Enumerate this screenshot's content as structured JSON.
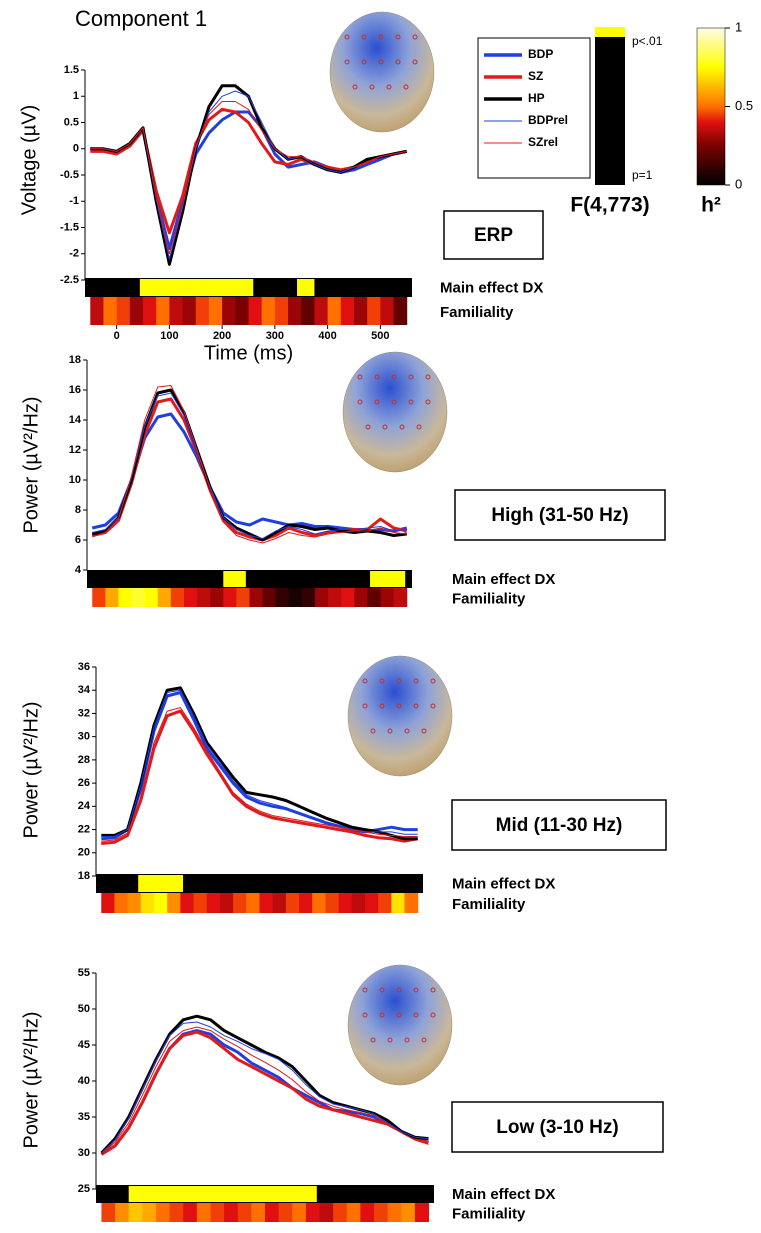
{
  "title": "Component 1",
  "significance_bar": {
    "label": "F(4,773)",
    "top_label": "p<.01",
    "bottom_label": "p=1"
  },
  "h2_bar": {
    "label": "h²",
    "ylim": [
      0,
      1
    ],
    "yticks": [
      0,
      0.5,
      1
    ]
  },
  "chart_data": [
    {
      "type": "line",
      "label": "ERP",
      "ylabel": "Voltage (µV)",
      "xlabel": "Time (ms)",
      "xlim": [
        -60,
        560
      ],
      "xticks": [
        0,
        100,
        200,
        300,
        400,
        500
      ],
      "ylim": [
        -2.5,
        1.5
      ],
      "yticks": [
        -2.5,
        -2.0,
        -1.5,
        -1.0,
        -0.5,
        0.0,
        0.5,
        1.0,
        1.5
      ],
      "x": [
        -50,
        -25,
        0,
        25,
        50,
        75,
        100,
        125,
        150,
        175,
        200,
        225,
        250,
        275,
        300,
        325,
        350,
        375,
        400,
        425,
        450,
        475,
        500,
        525,
        550
      ],
      "series": [
        {
          "name": "BDP",
          "color": "#1f3fe0",
          "style": "thick",
          "values": [
            0,
            -0.02,
            -0.05,
            0.1,
            0.35,
            -0.9,
            -1.9,
            -1.0,
            -0.1,
            0.3,
            0.55,
            0.7,
            0.7,
            0.4,
            -0.1,
            -0.35,
            -0.3,
            -0.25,
            -0.35,
            -0.45,
            -0.4,
            -0.3,
            -0.2,
            -0.1,
            -0.05
          ]
        },
        {
          "name": "SZ",
          "color": "#e01b1b",
          "style": "thick",
          "values": [
            -0.05,
            -0.05,
            -0.1,
            0.05,
            0.35,
            -0.8,
            -1.6,
            -0.9,
            0.1,
            0.55,
            0.75,
            0.7,
            0.5,
            0.1,
            -0.25,
            -0.3,
            -0.2,
            -0.3,
            -0.35,
            -0.4,
            -0.35,
            -0.25,
            -0.15,
            -0.1,
            -0.05
          ]
        },
        {
          "name": "HP",
          "color": "#000000",
          "style": "thick",
          "values": [
            0,
            0,
            -0.05,
            0.1,
            0.4,
            -1.0,
            -2.2,
            -1.2,
            0.0,
            0.8,
            1.2,
            1.2,
            1.0,
            0.4,
            0.0,
            -0.2,
            -0.15,
            -0.3,
            -0.4,
            -0.45,
            -0.35,
            -0.2,
            -0.15,
            -0.1,
            -0.05
          ]
        },
        {
          "name": "BDPrel",
          "color": "#1f3fe0",
          "style": "thin",
          "values": [
            0,
            0,
            -0.05,
            0.1,
            0.4,
            -0.95,
            -2.1,
            -1.1,
            0.0,
            0.7,
            1.0,
            1.1,
            1.0,
            0.5,
            0.0,
            -0.2,
            -0.15,
            -0.3,
            -0.4,
            -0.45,
            -0.35,
            -0.25,
            -0.15,
            -0.1,
            -0.05
          ]
        },
        {
          "name": "SZrel",
          "color": "#e01b1b",
          "style": "thin",
          "values": [
            0,
            0,
            -0.05,
            0.1,
            0.4,
            -0.9,
            -2.0,
            -1.1,
            0.05,
            0.65,
            0.9,
            0.9,
            0.75,
            0.35,
            0.0,
            -0.15,
            -0.15,
            -0.25,
            -0.35,
            -0.4,
            -0.35,
            -0.25,
            -0.15,
            -0.1,
            -0.05
          ]
        }
      ],
      "main_effect_dx": {
        "label": "Main effect DX",
        "intervals": [
          [
            44,
            259
          ],
          [
            342,
            375
          ]
        ]
      },
      "familiality": {
        "label": "Familiality",
        "bins": [
          -50,
          -25,
          0,
          25,
          50,
          75,
          100,
          125,
          150,
          175,
          200,
          225,
          250,
          275,
          300,
          325,
          350,
          375,
          400,
          425,
          450,
          475,
          500,
          525,
          550
        ],
        "values": [
          0.35,
          0.5,
          0.45,
          0.3,
          0.4,
          0.5,
          0.35,
          0.3,
          0.45,
          0.5,
          0.3,
          0.25,
          0.4,
          0.5,
          0.45,
          0.3,
          0.2,
          0.35,
          0.5,
          0.4,
          0.3,
          0.45,
          0.35,
          0.2
        ]
      }
    },
    {
      "type": "line",
      "label": "High (31-50 Hz)",
      "ylabel": "Power (µV²/Hz)",
      "xlim": [
        -60,
        560
      ],
      "ylim": [
        4,
        18
      ],
      "yticks": [
        4,
        6,
        8,
        10,
        12,
        14,
        16,
        18
      ],
      "x": [
        -50,
        -25,
        0,
        25,
        50,
        75,
        100,
        125,
        150,
        175,
        200,
        225,
        250,
        275,
        300,
        325,
        350,
        375,
        400,
        425,
        450,
        475,
        500,
        525,
        550
      ],
      "series": [
        {
          "name": "BDP",
          "color": "#1f3fe0",
          "style": "thick",
          "values": [
            6.8,
            7.0,
            7.8,
            10,
            12.8,
            14.2,
            14.4,
            13.2,
            11.5,
            9.5,
            7.8,
            7.2,
            7.0,
            7.4,
            7.2,
            7.0,
            7.1,
            6.9,
            6.9,
            6.8,
            6.7,
            6.6,
            6.7,
            6.6,
            6.8
          ]
        },
        {
          "name": "SZ",
          "color": "#e01b1b",
          "style": "thick",
          "values": [
            6.3,
            6.5,
            7.3,
            9.8,
            13,
            15.2,
            15.4,
            14,
            11.8,
            9.3,
            7.3,
            6.5,
            6.2,
            6.0,
            6.3,
            6.8,
            6.5,
            6.3,
            6.5,
            6.6,
            6.7,
            6.7,
            7.4,
            6.8,
            6.6
          ]
        },
        {
          "name": "HP",
          "color": "#000000",
          "style": "thick",
          "values": [
            6.4,
            6.6,
            7.5,
            10,
            13.5,
            15.8,
            16.0,
            14.5,
            12,
            9.5,
            7.5,
            6.8,
            6.4,
            6.0,
            6.5,
            7.0,
            6.9,
            6.7,
            6.8,
            6.6,
            6.5,
            6.6,
            6.5,
            6.3,
            6.4
          ]
        },
        {
          "name": "BDPrel",
          "color": "#1f3fe0",
          "style": "thin",
          "values": [
            6.5,
            6.7,
            7.5,
            10.2,
            13.6,
            15.6,
            15.8,
            14.3,
            11.8,
            9.5,
            7.5,
            6.7,
            6.3,
            6.1,
            6.6,
            6.9,
            6.7,
            6.4,
            6.6,
            6.7,
            6.7,
            6.8,
            6.9,
            6.6,
            6.7
          ]
        },
        {
          "name": "SZrel",
          "color": "#e01b1b",
          "style": "thin",
          "values": [
            6.2,
            6.5,
            7.4,
            10.3,
            14,
            16.2,
            16.3,
            14.6,
            12,
            9.4,
            7.2,
            6.3,
            6.0,
            5.8,
            6.1,
            6.5,
            6.3,
            6.2,
            6.4,
            6.5,
            6.6,
            6.6,
            6.8,
            6.5,
            6.4
          ]
        }
      ],
      "main_effect_dx": {
        "label": "Main effect DX",
        "intervals": [
          [
            200,
            243
          ],
          [
            480,
            547
          ]
        ]
      },
      "familiality": {
        "label": "Familiality",
        "bins": [
          -50,
          -25,
          0,
          25,
          50,
          75,
          100,
          125,
          150,
          175,
          200,
          225,
          250,
          275,
          300,
          325,
          350,
          375,
          400,
          425,
          450,
          475,
          500,
          525,
          550
        ],
        "values": [
          0.45,
          0.6,
          0.75,
          0.8,
          0.75,
          0.6,
          0.45,
          0.4,
          0.35,
          0.3,
          0.4,
          0.45,
          0.3,
          0.2,
          0.1,
          0.05,
          0.1,
          0.3,
          0.35,
          0.4,
          0.3,
          0.2,
          0.3,
          0.35
        ]
      }
    },
    {
      "type": "line",
      "label": "Mid (11-30 Hz)",
      "ylabel": "Power (µV²/Hz)",
      "xlim": [
        -60,
        560
      ],
      "ylim": [
        18,
        36
      ],
      "yticks": [
        18,
        20,
        22,
        24,
        26,
        28,
        30,
        32,
        34,
        36
      ],
      "x": [
        -50,
        -25,
        0,
        25,
        50,
        75,
        100,
        125,
        150,
        175,
        200,
        225,
        250,
        275,
        300,
        325,
        350,
        375,
        400,
        425,
        450,
        475,
        500,
        525,
        550
      ],
      "series": [
        {
          "name": "BDP",
          "color": "#1f3fe0",
          "style": "thick",
          "values": [
            21.2,
            21.3,
            22,
            25.5,
            30.5,
            33.5,
            33.8,
            31.5,
            29,
            27.5,
            26,
            24.8,
            24.3,
            24,
            23.8,
            23.4,
            23,
            22.6,
            22.3,
            22.0,
            21.8,
            22.0,
            22.2,
            22.0,
            22.0
          ]
        },
        {
          "name": "SZ",
          "color": "#e01b1b",
          "style": "thick",
          "values": [
            20.8,
            20.9,
            21.5,
            24.5,
            29,
            31.8,
            32.2,
            30.5,
            28.5,
            26.8,
            25,
            24,
            23.4,
            23,
            22.8,
            22.6,
            22.4,
            22.2,
            22.0,
            21.8,
            21.5,
            21.3,
            21.2,
            21.0,
            21.2
          ]
        },
        {
          "name": "HP",
          "color": "#000000",
          "style": "thick",
          "values": [
            21.5,
            21.5,
            22,
            26,
            31,
            34,
            34.2,
            32,
            29.5,
            28,
            26.5,
            25.2,
            25,
            24.8,
            24.5,
            24,
            23.5,
            23,
            22.6,
            22.2,
            22,
            21.8,
            21.5,
            21.2,
            21.2
          ]
        },
        {
          "name": "BDPrel",
          "color": "#1f3fe0",
          "style": "thin",
          "values": [
            21.4,
            21.4,
            22,
            25.8,
            30.8,
            33.8,
            34,
            31.8,
            29.3,
            27.8,
            26.2,
            25,
            24.5,
            24.2,
            23.9,
            23.4,
            23,
            22.5,
            22.2,
            22,
            21.8,
            21.8,
            21.8,
            21.6,
            21.6
          ]
        },
        {
          "name": "SZrel",
          "color": "#e01b1b",
          "style": "thin",
          "values": [
            21,
            21.1,
            21.7,
            24.8,
            29.5,
            32.2,
            32.5,
            30.8,
            28.8,
            27,
            25.2,
            24.2,
            23.6,
            23.2,
            23,
            22.8,
            22.6,
            22.4,
            22.2,
            22,
            21.8,
            21.6,
            21.5,
            21.4,
            21.4
          ]
        }
      ],
      "main_effect_dx": {
        "label": "Main effect DX",
        "intervals": [
          [
            20,
            105
          ]
        ]
      },
      "familiality": {
        "label": "Familiality",
        "bins": [
          -50,
          -25,
          0,
          25,
          50,
          75,
          100,
          125,
          150,
          175,
          200,
          225,
          250,
          275,
          300,
          325,
          350,
          375,
          400,
          425,
          450,
          475,
          500,
          525,
          550
        ],
        "values": [
          0.4,
          0.5,
          0.55,
          0.7,
          0.75,
          0.55,
          0.4,
          0.45,
          0.4,
          0.35,
          0.45,
          0.5,
          0.4,
          0.35,
          0.45,
          0.4,
          0.5,
          0.45,
          0.4,
          0.35,
          0.4,
          0.45,
          0.7,
          0.5
        ]
      }
    },
    {
      "type": "line",
      "label": "Low (3-10 Hz)",
      "ylabel": "Power (µV²/Hz)",
      "xlim": [
        -60,
        560
      ],
      "ylim": [
        25,
        55
      ],
      "yticks": [
        25,
        30,
        35,
        40,
        45,
        50,
        55
      ],
      "x": [
        -50,
        -25,
        0,
        25,
        50,
        75,
        100,
        125,
        150,
        175,
        200,
        225,
        250,
        275,
        300,
        325,
        350,
        375,
        400,
        425,
        450,
        475,
        500,
        525,
        550
      ],
      "series": [
        {
          "name": "BDP",
          "color": "#1f3fe0",
          "style": "thick",
          "values": [
            29.8,
            31,
            33.5,
            37,
            41,
            44.5,
            46.5,
            47,
            46.5,
            45,
            44,
            42.5,
            41.5,
            40.5,
            39,
            38,
            37,
            36,
            35.8,
            35.5,
            35,
            34,
            33,
            32,
            31.5
          ]
        },
        {
          "name": "SZ",
          "color": "#e01b1b",
          "style": "thick",
          "values": [
            29.8,
            31,
            33.5,
            37,
            41,
            44.5,
            46.3,
            46.8,
            46,
            44.5,
            43,
            42,
            41,
            40,
            39,
            37.5,
            36.5,
            36,
            35.5,
            35,
            34.5,
            34,
            33,
            32,
            31.5
          ]
        },
        {
          "name": "HP",
          "color": "#000000",
          "style": "thick",
          "values": [
            30,
            32,
            35,
            39,
            43,
            46.5,
            48.5,
            49,
            48.5,
            47,
            46,
            45,
            44,
            43.2,
            42,
            40,
            38,
            37,
            36.5,
            36,
            35.5,
            34.5,
            33,
            32.2,
            32
          ]
        },
        {
          "name": "BDPrel",
          "color": "#1f3fe0",
          "style": "thin",
          "values": [
            30,
            31.8,
            34.8,
            38.8,
            42.8,
            46.3,
            48,
            48.2,
            47.5,
            46.3,
            45.5,
            44.5,
            43.8,
            43,
            41.5,
            39.5,
            37.8,
            36.8,
            36.4,
            36,
            35.4,
            34.2,
            33,
            32.2,
            32
          ]
        },
        {
          "name": "SZrel",
          "color": "#e01b1b",
          "style": "thin",
          "values": [
            29.9,
            31.5,
            34.2,
            38,
            42,
            45.5,
            47,
            47.5,
            47,
            45.8,
            44.8,
            43.6,
            42.6,
            41.5,
            40.2,
            38.5,
            37.2,
            36.5,
            36,
            35.6,
            35.2,
            34,
            32.8,
            31.8,
            31.2
          ]
        }
      ],
      "main_effect_dx": {
        "label": "Main effect DX",
        "intervals": [
          [
            0,
            345
          ]
        ]
      },
      "familiality": {
        "label": "Familiality",
        "bins": [
          -50,
          -25,
          0,
          25,
          50,
          75,
          100,
          125,
          150,
          175,
          200,
          225,
          250,
          275,
          300,
          325,
          350,
          375,
          400,
          425,
          450,
          475,
          500,
          525,
          550
        ],
        "values": [
          0.45,
          0.55,
          0.65,
          0.6,
          0.5,
          0.45,
          0.4,
          0.5,
          0.45,
          0.4,
          0.45,
          0.5,
          0.4,
          0.45,
          0.5,
          0.4,
          0.35,
          0.45,
          0.5,
          0.4,
          0.45,
          0.5,
          0.55,
          0.4
        ]
      }
    }
  ]
}
